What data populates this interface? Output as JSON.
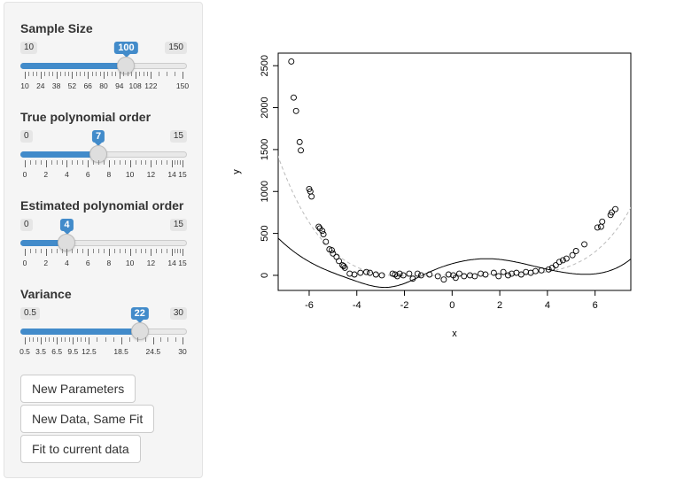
{
  "sidebar": {
    "sample_size": {
      "label": "Sample Size",
      "min": 10,
      "max": 150,
      "value": 100,
      "min_label": "10",
      "max_label": "150",
      "value_label": "100",
      "tick_labels": [
        "10",
        "24",
        "38",
        "52",
        "66",
        "80",
        "94",
        "108",
        "122",
        "150"
      ],
      "tick_values": [
        10,
        24,
        38,
        52,
        66,
        80,
        94,
        108,
        122,
        150
      ]
    },
    "true_order": {
      "label": "True polynomial order",
      "min": 0,
      "max": 15,
      "value": 7,
      "min_label": "0",
      "max_label": "15",
      "value_label": "7",
      "tick_labels": [
        "0",
        "2",
        "4",
        "6",
        "8",
        "10",
        "12",
        "14",
        "15"
      ],
      "tick_values": [
        0,
        2,
        4,
        6,
        8,
        10,
        12,
        14,
        15
      ]
    },
    "est_order": {
      "label": "Estimated polynomial order",
      "min": 0,
      "max": 15,
      "value": 4,
      "min_label": "0",
      "max_label": "15",
      "value_label": "4",
      "tick_labels": [
        "0",
        "2",
        "4",
        "6",
        "8",
        "10",
        "12",
        "14",
        "15"
      ],
      "tick_values": [
        0,
        2,
        4,
        6,
        8,
        10,
        12,
        14,
        15
      ]
    },
    "variance": {
      "label": "Variance",
      "min": 0.5,
      "max": 30,
      "value": 22,
      "min_label": "0.5",
      "max_label": "30",
      "value_label": "22",
      "tick_labels": [
        "0.5",
        "3.5",
        "6.5",
        "9.5",
        "12.5",
        "18.5",
        "24.5",
        "30"
      ],
      "tick_values": [
        0.5,
        3.5,
        6.5,
        9.5,
        12.5,
        18.5,
        24.5,
        30
      ]
    }
  },
  "buttons": {
    "new_params": "New Parameters",
    "new_data": "New Data, Same Fit",
    "fit_current": "Fit to current data"
  },
  "chart_data": {
    "type": "scatter",
    "xlabel": "x",
    "ylabel": "y",
    "xlim": [
      -7.3,
      7.5
    ],
    "ylim": [
      -180,
      2650
    ],
    "x_ticks": [
      -6,
      -4,
      -2,
      0,
      2,
      4,
      6
    ],
    "y_ticks": [
      0,
      500,
      1000,
      1500,
      2000,
      2500
    ],
    "grid": false,
    "points": [
      [
        -6.75,
        2550
      ],
      [
        -6.65,
        2120
      ],
      [
        -6.55,
        1960
      ],
      [
        -6.4,
        1590
      ],
      [
        -6.35,
        1490
      ],
      [
        -6.0,
        1030
      ],
      [
        -5.95,
        1000
      ],
      [
        -5.9,
        940
      ],
      [
        -5.6,
        580
      ],
      [
        -5.55,
        560
      ],
      [
        -5.45,
        530
      ],
      [
        -5.4,
        490
      ],
      [
        -5.3,
        400
      ],
      [
        -5.15,
        310
      ],
      [
        -5.05,
        300
      ],
      [
        -5.0,
        260
      ],
      [
        -4.85,
        220
      ],
      [
        -4.75,
        170
      ],
      [
        -4.6,
        120
      ],
      [
        -4.55,
        110
      ],
      [
        -4.5,
        90
      ],
      [
        -4.3,
        20
      ],
      [
        -4.1,
        10
      ],
      [
        -3.85,
        30
      ],
      [
        -3.6,
        40
      ],
      [
        -3.45,
        30
      ],
      [
        -3.2,
        10
      ],
      [
        -2.95,
        0
      ],
      [
        -2.5,
        20
      ],
      [
        -2.4,
        10
      ],
      [
        -2.3,
        -10
      ],
      [
        -2.2,
        20
      ],
      [
        -2.05,
        0
      ],
      [
        -1.8,
        20
      ],
      [
        -1.65,
        -40
      ],
      [
        -1.45,
        20
      ],
      [
        -1.3,
        0
      ],
      [
        -0.95,
        10
      ],
      [
        -0.6,
        -10
      ],
      [
        -0.35,
        -50
      ],
      [
        -0.15,
        10
      ],
      [
        0.05,
        0
      ],
      [
        0.15,
        -30
      ],
      [
        0.3,
        20
      ],
      [
        0.5,
        -10
      ],
      [
        0.75,
        0
      ],
      [
        0.95,
        -10
      ],
      [
        1.2,
        20
      ],
      [
        1.4,
        10
      ],
      [
        1.75,
        30
      ],
      [
        1.95,
        -10
      ],
      [
        2.15,
        40
      ],
      [
        2.35,
        0
      ],
      [
        2.5,
        20
      ],
      [
        2.7,
        30
      ],
      [
        2.9,
        10
      ],
      [
        3.1,
        40
      ],
      [
        3.3,
        30
      ],
      [
        3.5,
        50
      ],
      [
        3.75,
        60
      ],
      [
        4.05,
        70
      ],
      [
        4.2,
        90
      ],
      [
        4.35,
        120
      ],
      [
        4.5,
        160
      ],
      [
        4.65,
        180
      ],
      [
        4.8,
        200
      ],
      [
        5.05,
        240
      ],
      [
        5.2,
        290
      ],
      [
        5.55,
        370
      ],
      [
        6.1,
        570
      ],
      [
        6.25,
        580
      ],
      [
        6.3,
        640
      ],
      [
        6.65,
        720
      ],
      [
        6.7,
        750
      ],
      [
        6.85,
        790
      ]
    ],
    "series": [
      {
        "values": [],
        "style": "solid",
        "color": "#000000"
      },
      {
        "values": [],
        "style": "dashed",
        "color": "#bbbbbb"
      }
    ]
  }
}
